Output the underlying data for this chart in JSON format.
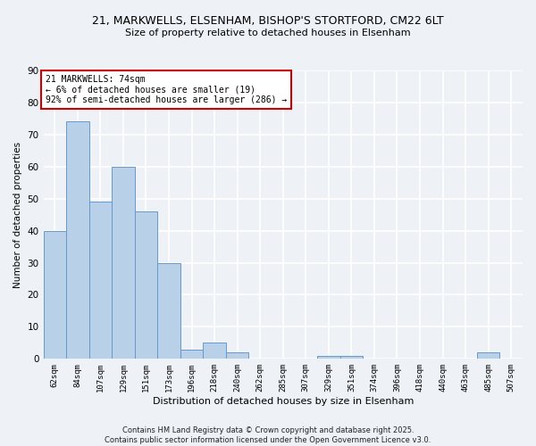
{
  "title_line1": "21, MARKWELLS, ELSENHAM, BISHOP'S STORTFORD, CM22 6LT",
  "title_line2": "Size of property relative to detached houses in Elsenham",
  "xlabel": "Distribution of detached houses by size in Elsenham",
  "ylabel": "Number of detached properties",
  "bar_labels": [
    "62sqm",
    "84sqm",
    "107sqm",
    "129sqm",
    "151sqm",
    "173sqm",
    "196sqm",
    "218sqm",
    "240sqm",
    "262sqm",
    "285sqm",
    "307sqm",
    "329sqm",
    "351sqm",
    "374sqm",
    "396sqm",
    "418sqm",
    "440sqm",
    "463sqm",
    "485sqm",
    "507sqm"
  ],
  "bar_values": [
    40,
    74,
    49,
    60,
    46,
    30,
    3,
    5,
    2,
    0,
    0,
    0,
    1,
    1,
    0,
    0,
    0,
    0,
    0,
    2,
    0
  ],
  "bar_color": "#b8d0e8",
  "bar_edge_color": "#6699cc",
  "bg_color": "#eef2f7",
  "grid_color": "#ffffff",
  "annotation_text": "21 MARKWELLS: 74sqm\n← 6% of detached houses are smaller (19)\n92% of semi-detached houses are larger (286) →",
  "annotation_box_color": "#ffffff",
  "annotation_box_edge": "#cc0000",
  "ylim": [
    0,
    90
  ],
  "yticks": [
    0,
    10,
    20,
    30,
    40,
    50,
    60,
    70,
    80,
    90
  ],
  "footer_line1": "Contains HM Land Registry data © Crown copyright and database right 2025.",
  "footer_line2": "Contains public sector information licensed under the Open Government Licence v3.0."
}
